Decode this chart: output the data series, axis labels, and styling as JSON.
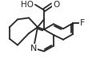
{
  "bg_color": "#ffffff",
  "line_color": "#222222",
  "figsize": [
    1.35,
    0.83
  ],
  "dpi": 100,
  "xlim": [
    0,
    135
  ],
  "ylim": [
    0,
    83
  ]
}
